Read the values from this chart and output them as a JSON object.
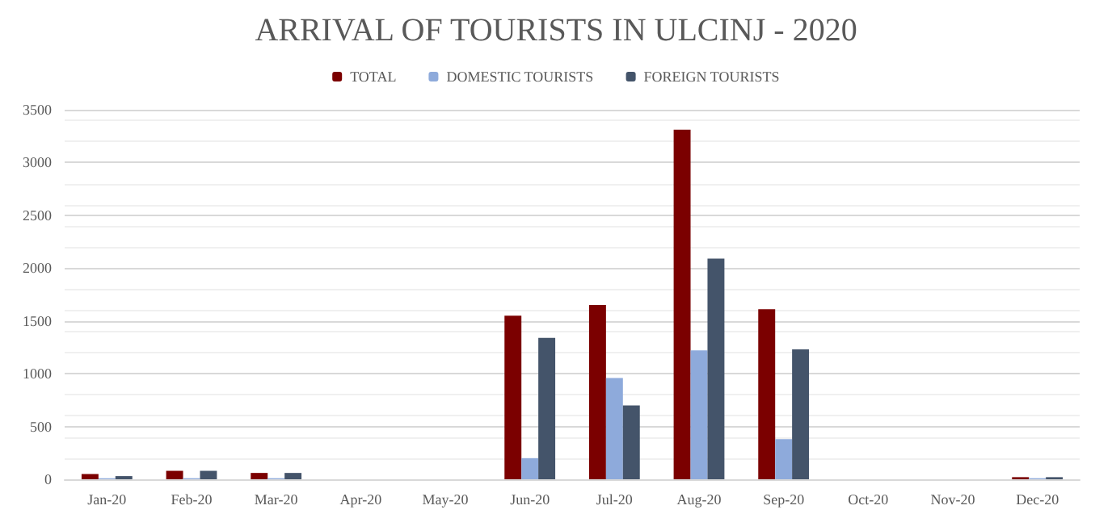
{
  "chart_data": {
    "type": "bar",
    "title": "ARRIVAL OF TOURISTS IN ULCINJ - 2020",
    "categories": [
      "Jan-20",
      "Feb-20",
      "Mar-20",
      "Apr-20",
      "May-20",
      "Jun-20",
      "Jul-20",
      "Aug-20",
      "Sep-20",
      "Oct-20",
      "Nov-20",
      "Dec-20"
    ],
    "series": [
      {
        "name": "TOTAL",
        "color": "#7b0000",
        "values": [
          50,
          80,
          60,
          0,
          0,
          1550,
          1650,
          3310,
          1610,
          0,
          0,
          20
        ]
      },
      {
        "name": "DOMESTIC TOURISTS",
        "color": "#8eaadb",
        "values": [
          10,
          10,
          10,
          0,
          0,
          200,
          960,
          1220,
          380,
          0,
          0,
          10
        ]
      },
      {
        "name": "FOREIGN TOURISTS",
        "color": "#44546a",
        "values": [
          30,
          80,
          60,
          0,
          0,
          1340,
          700,
          2090,
          1230,
          0,
          0,
          20
        ]
      }
    ],
    "ylim": [
      0,
      3500
    ],
    "yticks": [
      0,
      500,
      1000,
      1500,
      2000,
      2500,
      3000,
      3500
    ],
    "grid": "y",
    "legend": "top"
  }
}
